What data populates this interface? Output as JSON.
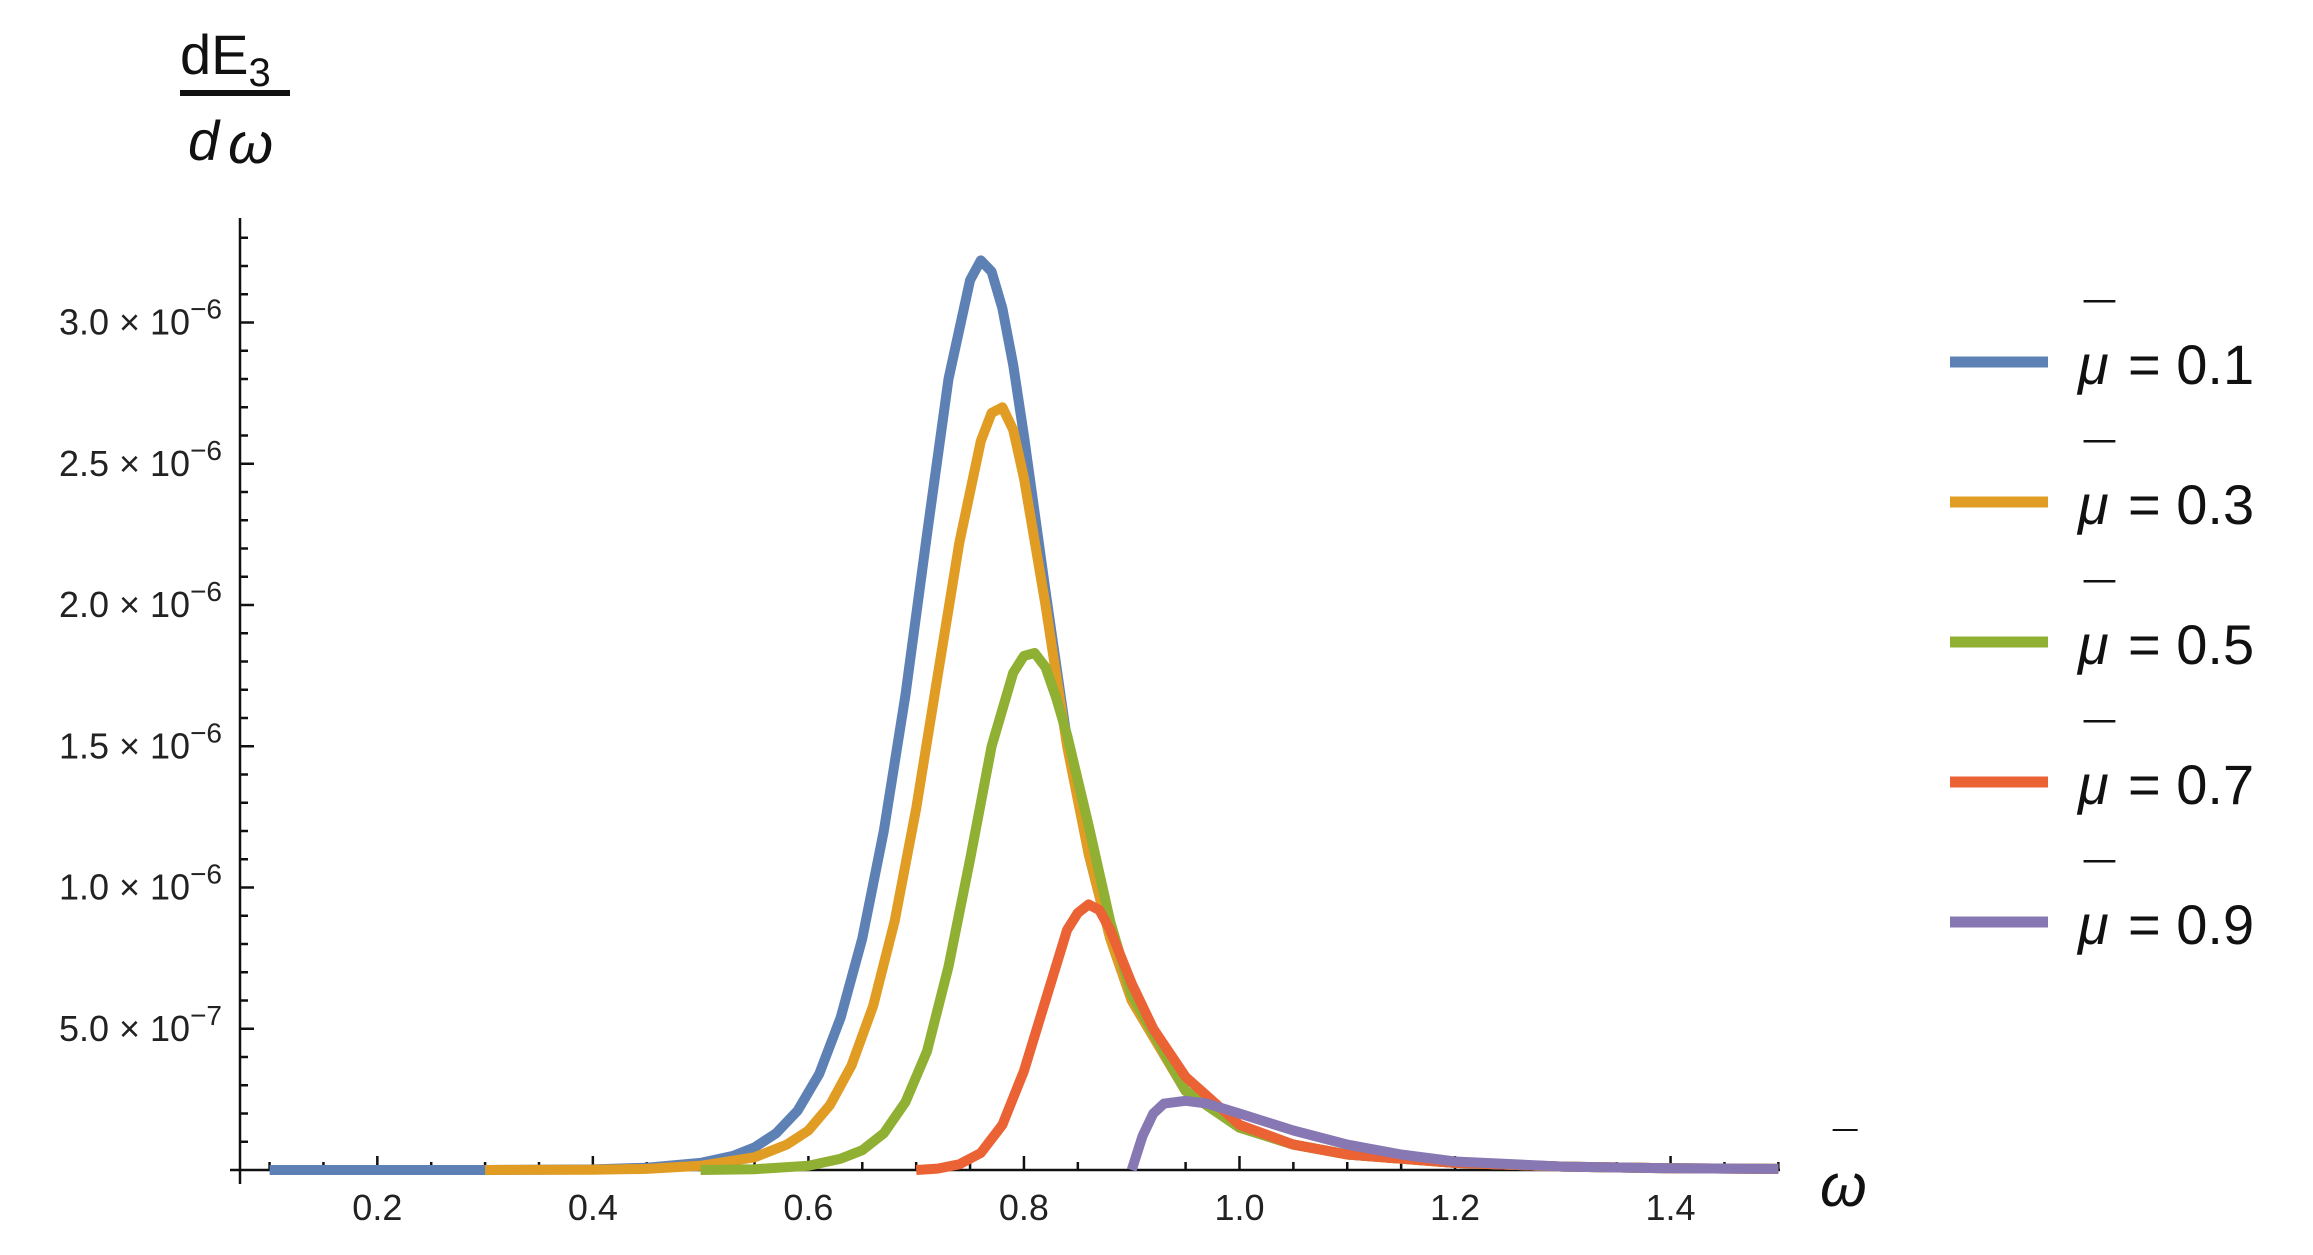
{
  "chart_data": {
    "type": "line",
    "ylabel": {
      "numerator": "dE",
      "subscript": "3",
      "denominator_d": "d",
      "denominator_sym": "ω",
      "bar": "¯"
    },
    "xlabel": {
      "sym": "ω",
      "bar": "¯"
    },
    "xlim": [
      0.08,
      1.5
    ],
    "ylim": [
      0,
      3.38e-06
    ],
    "x_ticks": [
      {
        "v": 0.2,
        "label": "0.2"
      },
      {
        "v": 0.4,
        "label": "0.4"
      },
      {
        "v": 0.6,
        "label": "0.6"
      },
      {
        "v": 0.8,
        "label": "0.8"
      },
      {
        "v": 1.0,
        "label": "1.0"
      },
      {
        "v": 1.2,
        "label": "1.2"
      },
      {
        "v": 1.4,
        "label": "1.4"
      }
    ],
    "y_ticks": [
      {
        "v": 5e-07,
        "mant": "5.0",
        "exp": "−7"
      },
      {
        "v": 1e-06,
        "mant": "1.0",
        "exp": "−6"
      },
      {
        "v": 1.5e-06,
        "mant": "1.5",
        "exp": "−6"
      },
      {
        "v": 2e-06,
        "mant": "2.0",
        "exp": "−6"
      },
      {
        "v": 2.5e-06,
        "mant": "2.5",
        "exp": "−6"
      },
      {
        "v": 3e-06,
        "mant": "3.0",
        "exp": "−6"
      }
    ],
    "legend_position": "right",
    "series": [
      {
        "name": "μ = 0.1",
        "mu": "μ",
        "value_text": "= 0.1",
        "color": "#5E81B5",
        "x": [
          0.1,
          0.3,
          0.4,
          0.45,
          0.5,
          0.53,
          0.55,
          0.57,
          0.59,
          0.61,
          0.63,
          0.65,
          0.67,
          0.69,
          0.71,
          0.73,
          0.75,
          0.76,
          0.77,
          0.78,
          0.79,
          0.8,
          0.82,
          0.84,
          0.86,
          0.88,
          0.9,
          0.95,
          1.0,
          1.05,
          1.1,
          1.2,
          1.3,
          1.4,
          1.5
        ],
        "y": [
          0,
          0,
          2e-09,
          8e-09,
          2.5e-08,
          5e-08,
          8e-08,
          1.3e-07,
          2.1e-07,
          3.4e-07,
          5.4e-07,
          8.2e-07,
          1.2e-06,
          1.68e-06,
          2.25e-06,
          2.8e-06,
          3.15e-06,
          3.22e-06,
          3.18e-06,
          3.05e-06,
          2.85e-06,
          2.6e-06,
          2.05e-06,
          1.52e-06,
          1.12e-06,
          8.2e-07,
          6e-07,
          2.8e-07,
          1.5e-07,
          9e-08,
          5.5e-08,
          2.5e-08,
          1.2e-08,
          6e-09,
          4e-09
        ]
      },
      {
        "name": "μ = 0.3",
        "mu": "μ",
        "value_text": "= 0.3",
        "color": "#E19C24",
        "x": [
          0.3,
          0.4,
          0.45,
          0.5,
          0.55,
          0.58,
          0.6,
          0.62,
          0.64,
          0.66,
          0.68,
          0.7,
          0.72,
          0.74,
          0.76,
          0.77,
          0.78,
          0.79,
          0.8,
          0.82,
          0.84,
          0.86,
          0.88,
          0.9,
          0.95,
          1.0,
          1.05,
          1.1,
          1.2,
          1.3,
          1.4,
          1.5
        ],
        "y": [
          0,
          1e-09,
          4e-09,
          1.5e-08,
          4.5e-08,
          9e-08,
          1.4e-07,
          2.3e-07,
          3.7e-07,
          5.8e-07,
          8.8e-07,
          1.28e-06,
          1.75e-06,
          2.22e-06,
          2.58e-06,
          2.68e-06,
          2.7e-06,
          2.62e-06,
          2.45e-06,
          2e-06,
          1.5e-06,
          1.12e-06,
          8.2e-07,
          6e-07,
          2.8e-07,
          1.5e-07,
          9e-08,
          5.5e-08,
          2.5e-08,
          1.2e-08,
          6e-09,
          4e-09
        ]
      },
      {
        "name": "μ = 0.5",
        "mu": "μ",
        "value_text": "= 0.5",
        "color": "#8FB032",
        "x": [
          0.5,
          0.55,
          0.6,
          0.63,
          0.65,
          0.67,
          0.69,
          0.71,
          0.73,
          0.75,
          0.77,
          0.79,
          0.8,
          0.81,
          0.82,
          0.83,
          0.84,
          0.86,
          0.88,
          0.9,
          0.95,
          1.0,
          1.05,
          1.1,
          1.2,
          1.3,
          1.4,
          1.5
        ],
        "y": [
          0,
          3e-09,
          1.5e-08,
          4e-08,
          7e-08,
          1.3e-07,
          2.4e-07,
          4.2e-07,
          7.2e-07,
          1.1e-06,
          1.5e-06,
          1.76e-06,
          1.82e-06,
          1.83e-06,
          1.78e-06,
          1.67e-06,
          1.54e-06,
          1.22e-06,
          8.8e-07,
          6.2e-07,
          2.8e-07,
          1.5e-07,
          9e-08,
          5.5e-08,
          2.5e-08,
          1.2e-08,
          6e-09,
          4e-09
        ]
      },
      {
        "name": "μ = 0.7",
        "mu": "μ",
        "value_text": "= 0.7",
        "color": "#EB6235",
        "x": [
          0.7,
          0.72,
          0.74,
          0.76,
          0.78,
          0.8,
          0.82,
          0.84,
          0.85,
          0.86,
          0.87,
          0.88,
          0.9,
          0.92,
          0.95,
          1.0,
          1.05,
          1.1,
          1.2,
          1.3,
          1.4,
          1.5
        ],
        "y": [
          0,
          5e-09,
          2e-08,
          6e-08,
          1.6e-07,
          3.5e-07,
          6e-07,
          8.5e-07,
          9.1e-07,
          9.4e-07,
          9.2e-07,
          8.5e-07,
          6.6e-07,
          5e-07,
          3.3e-07,
          1.6e-07,
          9e-08,
          5.5e-08,
          2.5e-08,
          1.2e-08,
          6e-09,
          4e-09
        ]
      },
      {
        "name": "μ = 0.9",
        "mu": "μ",
        "value_text": "= 0.9",
        "color": "#8778B3",
        "x": [
          0.9,
          0.91,
          0.92,
          0.93,
          0.95,
          0.97,
          1.0,
          1.05,
          1.1,
          1.15,
          1.2,
          1.3,
          1.4,
          1.5
        ],
        "y": [
          0,
          1.2e-07,
          2e-07,
          2.35e-07,
          2.45e-07,
          2.35e-07,
          2e-07,
          1.4e-07,
          9e-08,
          5.5e-08,
          3e-08,
          1.2e-08,
          6e-09,
          4e-09
        ]
      }
    ]
  }
}
